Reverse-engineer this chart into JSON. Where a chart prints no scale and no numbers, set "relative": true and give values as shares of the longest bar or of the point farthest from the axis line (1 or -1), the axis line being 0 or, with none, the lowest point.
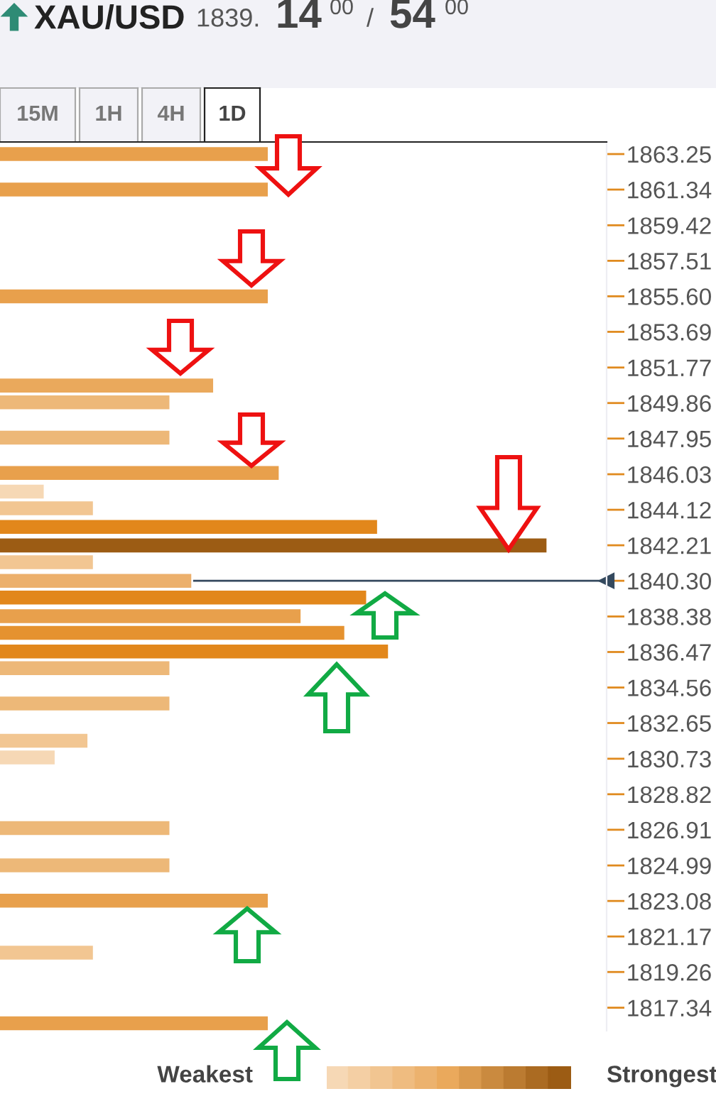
{
  "chart_data": {
    "type": "bar",
    "orientation": "horizontal",
    "relative": true,
    "title": "XAU/USD",
    "annotations": [
      "1839.",
      "14",
      "00",
      "/",
      "54",
      "00",
      "15M",
      "1H",
      "4H",
      "1D",
      "Weakest",
      "Strongest"
    ],
    "x": [
      1863.25,
      1861.34,
      1855.6,
      1850.8,
      1849.9,
      1848.0,
      1846.1,
      1845.1,
      1844.2,
      1843.2,
      1842.2,
      1841.3,
      1840.3,
      1839.4,
      1838.4,
      1837.5,
      1836.5,
      1835.6,
      1833.7,
      1831.7,
      1830.8,
      1827.0,
      1825.0,
      1823.1,
      1820.3,
      1816.5
    ],
    "values": [
      0.49,
      0.49,
      0.49,
      0.39,
      0.31,
      0.31,
      0.51,
      0.08,
      0.17,
      0.69,
      1,
      0.17,
      0.35,
      0.67,
      0.55,
      0.63,
      0.71,
      0.31,
      0.31,
      0.16,
      0.1,
      0.31,
      0.31,
      0.49,
      0.17,
      0.49
    ],
    "colors": [
      "#e8a04c",
      "#e8a04c",
      "#e8a04c",
      "#eaa95c",
      "#edb878",
      "#edb878",
      "#e8a04c",
      "#f6d8b5",
      "#f2c692",
      "#e2871b",
      "#9c5c14",
      "#f2c692",
      "#ecb06c",
      "#e2871b",
      "#e8a04c",
      "#e5922f",
      "#e2871b",
      "#edb878",
      "#edb878",
      "#f2c692",
      "#f6d8b5",
      "#edb878",
      "#edb878",
      "#e8a04c",
      "#f2c692",
      "#e8a04c"
    ],
    "ylim": [
      1816.1,
      1863.9
    ],
    "yticks": [
      1863.25,
      1861.34,
      1859.42,
      1857.51,
      {
        "value": 1855.6,
        "label": "1855.60"
      },
      1853.69,
      1851.77,
      1849.86,
      1847.95,
      1846.03,
      1844.12,
      1842.21,
      {
        "value": 1840.3,
        "label": "1840.30"
      },
      1838.38,
      1836.47,
      1834.56,
      1832.65,
      1830.73,
      1828.82,
      1826.91,
      1824.99,
      1823.08,
      1821.17,
      1819.26,
      1817.34
    ],
    "ref_lines": [
      {
        "axis": "y",
        "value": 1840.3,
        "color": "#34495e"
      }
    ]
  }
}
